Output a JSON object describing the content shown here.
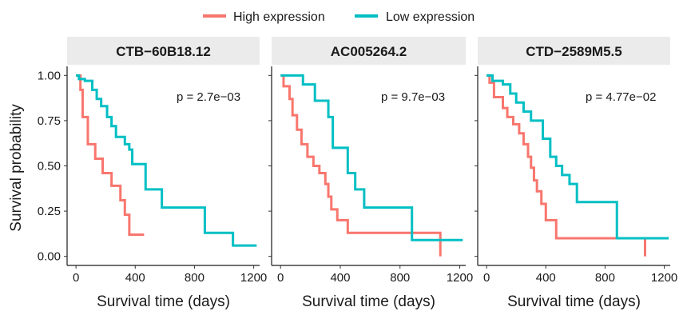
{
  "legend": {
    "entries": [
      {
        "label": "High expression",
        "color": "#F8766D"
      },
      {
        "label": "Low expression",
        "color": "#00BFC4"
      }
    ]
  },
  "chart_data": {
    "type": "line",
    "subtype": "kaplan-meier step curves",
    "shared_ylabel": "Survival probability",
    "legend_position": "top",
    "xlim": [
      -60,
      1240
    ],
    "ylim": [
      -0.05,
      1.05
    ],
    "x_ticks": [
      0,
      400,
      800,
      1200
    ],
    "y_ticks": [
      0.0,
      0.25,
      0.5,
      0.75,
      1.0
    ],
    "y_tick_labels": [
      "0.00",
      "0.25",
      "0.50",
      "0.75",
      "1.00"
    ],
    "grid": false,
    "strip_background": "#EBEBEB",
    "panels": [
      {
        "title": "CTB−60B18.12",
        "xlabel": "Survival time (days)",
        "pvalue": "p = 2.7e−03",
        "series": [
          {
            "name": "High expression",
            "color": "#F8766D",
            "x": [
              0,
              30,
              45,
              80,
              130,
              180,
              240,
              300,
              330,
              360,
              460
            ],
            "y": [
              1.0,
              0.92,
              0.77,
              0.62,
              0.54,
              0.46,
              0.39,
              0.31,
              0.23,
              0.12,
              0.12
            ]
          },
          {
            "name": "Low expression",
            "color": "#00BFC4",
            "x": [
              0,
              20,
              60,
              110,
              140,
              170,
              210,
              240,
              270,
              330,
              360,
              380,
              470,
              580,
              870,
              1060,
              1220
            ],
            "y": [
              1.0,
              0.98,
              0.97,
              0.92,
              0.87,
              0.83,
              0.77,
              0.72,
              0.66,
              0.62,
              0.59,
              0.51,
              0.37,
              0.27,
              0.13,
              0.06,
              0.06
            ]
          }
        ]
      },
      {
        "title": "AC005264.2",
        "xlabel": "Survival time (days)",
        "pvalue": "p = 9.7e−03",
        "series": [
          {
            "name": "High expression",
            "color": "#F8766D",
            "x": [
              0,
              20,
              60,
              80,
              110,
              140,
              180,
              220,
              260,
              300,
              320,
              340,
              380,
              450,
              1070,
              1070
            ],
            "y": [
              1.0,
              0.94,
              0.87,
              0.78,
              0.7,
              0.62,
              0.55,
              0.5,
              0.46,
              0.4,
              0.33,
              0.26,
              0.2,
              0.13,
              0.13,
              0.0
            ]
          },
          {
            "name": "Low expression",
            "color": "#00BFC4",
            "x": [
              0,
              150,
              230,
              320,
              350,
              450,
              500,
              560,
              620,
              880,
              1220
            ],
            "y": [
              1.0,
              0.95,
              0.86,
              0.77,
              0.6,
              0.46,
              0.37,
              0.27,
              0.27,
              0.09,
              0.09
            ]
          }
        ]
      },
      {
        "title": "CTD−2589M5.5",
        "xlabel": "Survival time (days)",
        "pvalue": "p = 4.77e−02",
        "series": [
          {
            "name": "High expression",
            "color": "#F8766D",
            "x": [
              0,
              20,
              50,
              110,
              140,
              180,
              220,
              250,
              280,
              300,
              320,
              340,
              370,
              400,
              470,
              1070,
              1070
            ],
            "y": [
              1.0,
              0.96,
              0.88,
              0.82,
              0.77,
              0.73,
              0.68,
              0.62,
              0.55,
              0.49,
              0.42,
              0.36,
              0.29,
              0.2,
              0.1,
              0.1,
              0.0
            ]
          },
          {
            "name": "Low expression",
            "color": "#00BFC4",
            "x": [
              0,
              40,
              110,
              160,
              200,
              250,
              300,
              380,
              430,
              470,
              510,
              560,
              610,
              880,
              1230
            ],
            "y": [
              1.0,
              0.97,
              0.95,
              0.9,
              0.85,
              0.8,
              0.75,
              0.65,
              0.55,
              0.5,
              0.45,
              0.4,
              0.3,
              0.1,
              0.1
            ]
          }
        ]
      }
    ]
  }
}
